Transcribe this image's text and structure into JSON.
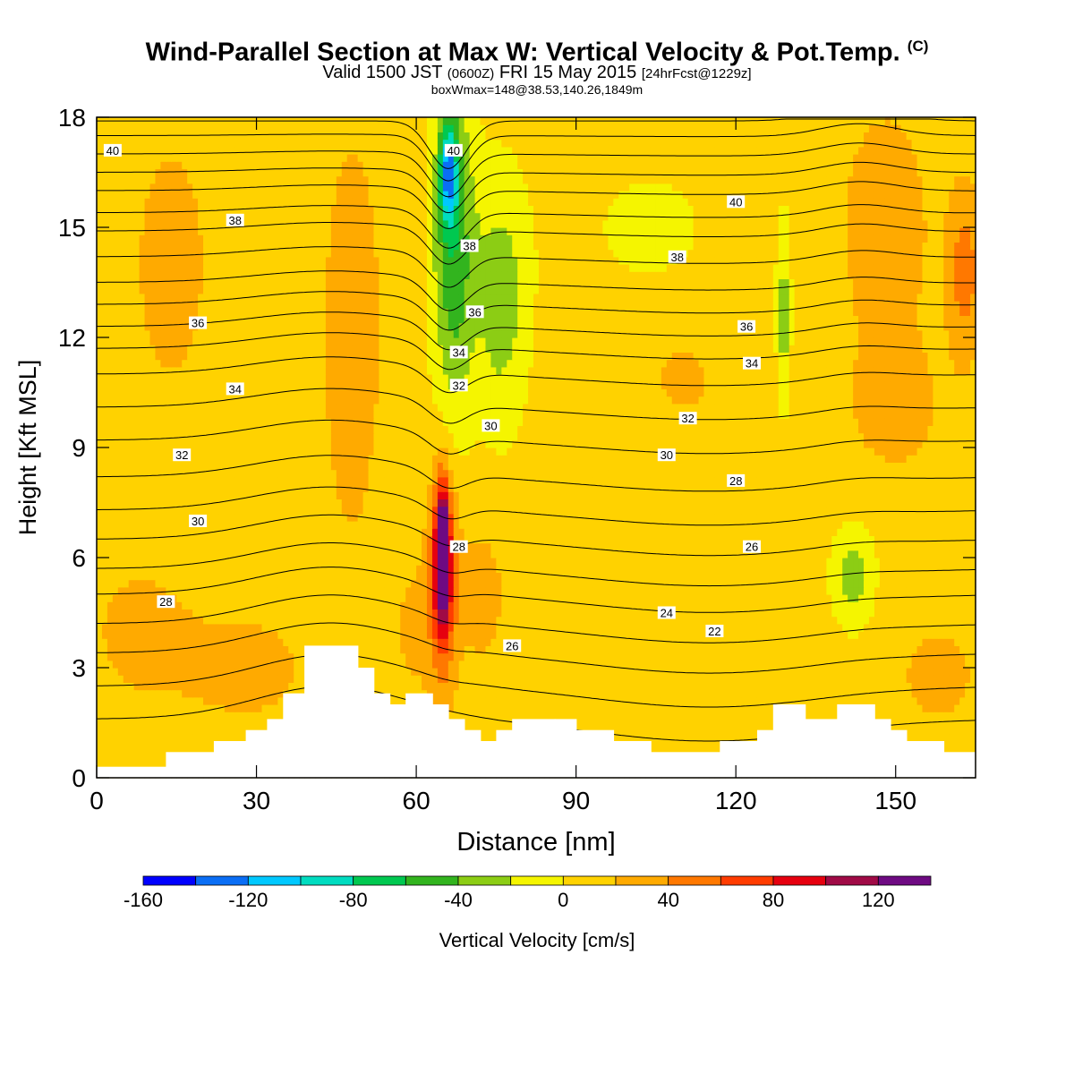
{
  "header": {
    "title": "Wind-Parallel Section at Max W: Vertical Velocity & Pot.Temp.",
    "copyright": "(C)",
    "valid_prefix": "Valid 1500 JST",
    "valid_utc": "(0600Z)",
    "valid_date": "FRI 15 May 2015",
    "forecast": "[24hrFcst@1229z]",
    "box_info": "boxWmax=148@38.53,140.26,1849m"
  },
  "chart_data": {
    "type": "heatmap",
    "xlabel": "Distance [nm]",
    "ylabel": "Height [Kft MSL]",
    "xlim": [
      0,
      165
    ],
    "ylim": [
      0,
      18
    ],
    "x_ticks": [
      0,
      30,
      60,
      90,
      120,
      150
    ],
    "y_ticks": [
      0,
      3,
      6,
      9,
      12,
      15,
      18
    ],
    "colorbar": {
      "label": "Vertical Velocity [cm/s]",
      "bounds": [
        -160,
        140
      ],
      "step": 20,
      "tick_labels": [
        -160,
        -120,
        -80,
        -40,
        0,
        40,
        80,
        120
      ],
      "colors": [
        "#0000ff",
        "#0a6ef5",
        "#00c8ff",
        "#00dcc0",
        "#00c850",
        "#32b41e",
        "#8ccd14",
        "#f5f500",
        "#ffd200",
        "#ffaa00",
        "#ff7800",
        "#ff3c00",
        "#e6000f",
        "#a00a46",
        "#6e0a82"
      ]
    },
    "background_velocity": 10,
    "velocity_features": [
      {
        "x": 14,
        "y": 14.0,
        "rx": 9,
        "ry": 4.5,
        "value": 25
      },
      {
        "x": 8,
        "y": 4.0,
        "rx": 10,
        "ry": 2.0,
        "value": 25
      },
      {
        "x": 28,
        "y": 3.0,
        "rx": 14,
        "ry": 1.8,
        "value": 25
      },
      {
        "x": 48,
        "y": 12.0,
        "rx": 6,
        "ry": 6.0,
        "value": 30
      },
      {
        "x": 60,
        "y": 4.5,
        "rx": 5,
        "ry": 2.5,
        "value": 25
      },
      {
        "x": 58,
        "y": 7.5,
        "rx": 4,
        "ry": 2.0,
        "value": -2
      },
      {
        "x": 72,
        "y": 5.0,
        "rx": 4,
        "ry": 1.6,
        "value": 35
      },
      {
        "x": 65.0,
        "y": 5.5,
        "rx": 2.5,
        "ry": 2.7,
        "value": 92
      },
      {
        "x": 65.0,
        "y": 6.3,
        "rx": 1.2,
        "ry": 1.6,
        "value": 130
      },
      {
        "x": 67,
        "y": 14.5,
        "rx": 4,
        "ry": 4.5,
        "value": -55
      },
      {
        "x": 66,
        "y": 16.5,
        "rx": 1.6,
        "ry": 1.3,
        "value": -95
      },
      {
        "x": 76,
        "y": 13.0,
        "rx": 5,
        "ry": 3.5,
        "value": -30
      },
      {
        "x": 104,
        "y": 15.0,
        "rx": 20,
        "ry": 3.0,
        "value": -2
      },
      {
        "x": 110,
        "y": 11.0,
        "rx": 8,
        "ry": 1.5,
        "value": 25
      },
      {
        "x": 129,
        "y": 12.5,
        "rx": 1.3,
        "ry": 2.5,
        "value": -30
      },
      {
        "x": 142,
        "y": 5.5,
        "rx": 4,
        "ry": 1.4,
        "value": -30
      },
      {
        "x": 148,
        "y": 15.0,
        "rx": 9,
        "ry": 3.5,
        "value": 30
      },
      {
        "x": 163,
        "y": 13.8,
        "rx": 3,
        "ry": 2.2,
        "value": 50
      },
      {
        "x": 150,
        "y": 10.0,
        "rx": 10,
        "ry": 2.0,
        "value": 25
      },
      {
        "x": 158,
        "y": 2.8,
        "rx": 9,
        "ry": 1.6,
        "value": 25
      }
    ],
    "potential_temperature": {
      "base_heights": [
        1.6,
        2.5,
        3.4,
        4.2,
        5.0,
        5.7,
        6.5,
        7.3,
        8.2,
        9.2,
        10.1,
        11.0,
        11.7,
        12.3,
        12.9,
        13.5,
        14.2,
        14.9,
        15.4,
        16.0,
        16.5,
        17.0,
        17.5,
        17.9
      ],
      "value_start": 26,
      "value_step": 0.5,
      "labels": [
        {
          "text": "40",
          "x": 3,
          "y": 17.1
        },
        {
          "text": "38",
          "x": 26,
          "y": 15.2
        },
        {
          "text": "36",
          "x": 19,
          "y": 12.4
        },
        {
          "text": "34",
          "x": 26,
          "y": 10.6
        },
        {
          "text": "32",
          "x": 16,
          "y": 8.8
        },
        {
          "text": "30",
          "x": 19,
          "y": 7.0
        },
        {
          "text": "28",
          "x": 13,
          "y": 4.8
        },
        {
          "text": "40",
          "x": 67,
          "y": 17.1
        },
        {
          "text": "38",
          "x": 70,
          "y": 14.5
        },
        {
          "text": "36",
          "x": 71,
          "y": 12.7
        },
        {
          "text": "34",
          "x": 68,
          "y": 11.6
        },
        {
          "text": "32",
          "x": 68,
          "y": 10.7
        },
        {
          "text": "30",
          "x": 74,
          "y": 9.6
        },
        {
          "text": "28",
          "x": 68,
          "y": 6.3
        },
        {
          "text": "26",
          "x": 78,
          "y": 3.6
        },
        {
          "text": "40",
          "x": 120,
          "y": 15.7
        },
        {
          "text": "38",
          "x": 109,
          "y": 14.2
        },
        {
          "text": "36",
          "x": 122,
          "y": 12.3
        },
        {
          "text": "34",
          "x": 123,
          "y": 11.3
        },
        {
          "text": "32",
          "x": 111,
          "y": 9.8
        },
        {
          "text": "30",
          "x": 107,
          "y": 8.8
        },
        {
          "text": "28",
          "x": 120,
          "y": 8.1
        },
        {
          "text": "26",
          "x": 123,
          "y": 6.3
        },
        {
          "text": "24",
          "x": 107,
          "y": 4.5
        },
        {
          "text": "22",
          "x": 116,
          "y": 4.0
        }
      ]
    },
    "terrain": [
      {
        "x0": 0,
        "x1": 13,
        "h": 0.3
      },
      {
        "x0": 13,
        "x1": 22,
        "h": 0.7
      },
      {
        "x0": 22,
        "x1": 25,
        "h": 1.0
      },
      {
        "x0": 25,
        "x1": 28,
        "h": 1.0
      },
      {
        "x0": 28,
        "x1": 32,
        "h": 1.3
      },
      {
        "x0": 32,
        "x1": 35,
        "h": 1.6
      },
      {
        "x0": 35,
        "x1": 39,
        "h": 2.3
      },
      {
        "x0": 39,
        "x1": 49,
        "h": 3.6
      },
      {
        "x0": 49,
        "x1": 52,
        "h": 3.0
      },
      {
        "x0": 52,
        "x1": 55,
        "h": 2.3
      },
      {
        "x0": 55,
        "x1": 58,
        "h": 2.0
      },
      {
        "x0": 58,
        "x1": 63,
        "h": 2.3
      },
      {
        "x0": 63,
        "x1": 66,
        "h": 2.0
      },
      {
        "x0": 66,
        "x1": 69,
        "h": 1.6
      },
      {
        "x0": 69,
        "x1": 72,
        "h": 1.3
      },
      {
        "x0": 72,
        "x1": 75,
        "h": 1.0
      },
      {
        "x0": 75,
        "x1": 78,
        "h": 1.3
      },
      {
        "x0": 78,
        "x1": 86,
        "h": 1.6
      },
      {
        "x0": 86,
        "x1": 90,
        "h": 1.6
      },
      {
        "x0": 90,
        "x1": 97,
        "h": 1.3
      },
      {
        "x0": 97,
        "x1": 104,
        "h": 1.0
      },
      {
        "x0": 104,
        "x1": 117,
        "h": 0.7
      },
      {
        "x0": 117,
        "x1": 124,
        "h": 1.0
      },
      {
        "x0": 124,
        "x1": 127,
        "h": 1.3
      },
      {
        "x0": 127,
        "x1": 133,
        "h": 2.0
      },
      {
        "x0": 133,
        "x1": 139,
        "h": 1.6
      },
      {
        "x0": 139,
        "x1": 146,
        "h": 2.0
      },
      {
        "x0": 146,
        "x1": 149,
        "h": 1.6
      },
      {
        "x0": 149,
        "x1": 152,
        "h": 1.3
      },
      {
        "x0": 152,
        "x1": 159,
        "h": 1.0
      },
      {
        "x0": 159,
        "x1": 165,
        "h": 0.7
      }
    ]
  }
}
